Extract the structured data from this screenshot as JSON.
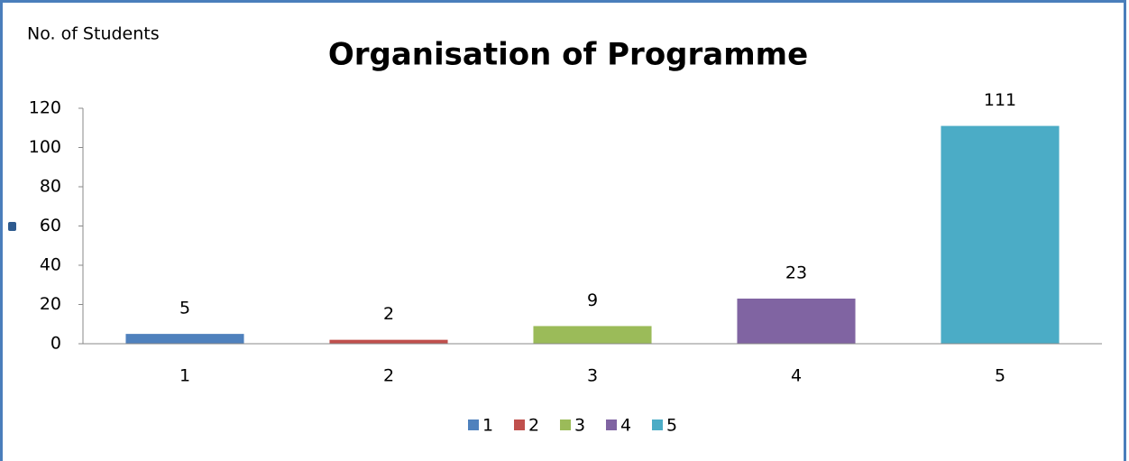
{
  "chart_data": {
    "type": "bar",
    "title": "Organisation of Programme",
    "y_label": "No. of Students",
    "categories": [
      "1",
      "2",
      "3",
      "4",
      "5"
    ],
    "values": [
      5,
      2,
      9,
      23,
      111
    ],
    "colors": [
      "#4f81bd",
      "#c0504d",
      "#9bbb59",
      "#8064a2",
      "#4bacc6"
    ],
    "ylim": [
      0,
      120
    ],
    "yticks": [
      0,
      20,
      40,
      60,
      80,
      100,
      120
    ],
    "grid": false,
    "legend": "bottom"
  }
}
